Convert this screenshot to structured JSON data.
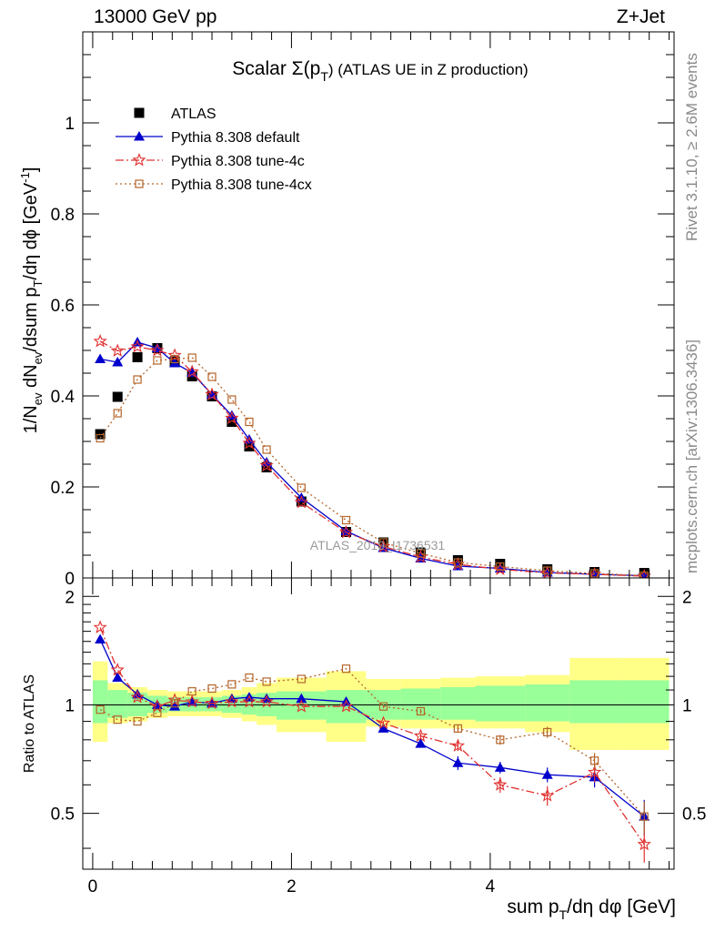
{
  "header": {
    "left": "13000 GeV pp",
    "right": "Z+Jet"
  },
  "side_labels": {
    "rivet": "Rivet 3.1.10, ≥ 2.6M events",
    "mcplots": "mcplots.cern.ch [arXiv:1306.3436]"
  },
  "watermark": "ATLAS_2019_I1736531",
  "chart_data": [
    {
      "type": "scatter",
      "title": "Scalar Σ(pT) (ATLAS UE in Z production)",
      "title_main": "Scalar Σ(p",
      "title_sub": "T",
      "title_tail": ") (ATLAS UE in Z production)",
      "ylabel": "1/Nev dNev/dsum pT/dη dφ [GeV⁻¹]",
      "xlim": [
        -0.1,
        5.85
      ],
      "ylim": [
        0,
        1.2
      ],
      "log_y": false,
      "yticks": [
        {
          "v": 0,
          "label": "0"
        },
        {
          "v": 0.2,
          "label": "0.2"
        },
        {
          "v": 0.4,
          "label": "0.4"
        },
        {
          "v": 0.6,
          "label": "0.6"
        },
        {
          "v": 0.8,
          "label": "0.8"
        },
        {
          "v": 1,
          "label": "1"
        }
      ],
      "legend_position": "top-left",
      "x": [
        0.075,
        0.25,
        0.45,
        0.65,
        0.825,
        1.0,
        1.2,
        1.4,
        1.575,
        1.75,
        2.1,
        2.55,
        2.925,
        3.3,
        3.675,
        4.1,
        4.575,
        5.05,
        5.55
      ],
      "series": [
        {
          "name": "ATLAS",
          "marker": "filled-square",
          "color": "#000000",
          "values": [
            0.316,
            0.398,
            0.485,
            0.505,
            0.476,
            0.443,
            0.399,
            0.343,
            0.289,
            0.243,
            0.168,
            0.101,
            0.078,
            0.056,
            0.039,
            0.031,
            0.019,
            0.013,
            0.011
          ]
        },
        {
          "name": "Pythia 8.308 default",
          "marker": "triangle",
          "color": "#0000cc",
          "dash": "",
          "values": [
            0.481,
            0.474,
            0.518,
            0.505,
            0.472,
            0.451,
            0.403,
            0.357,
            0.304,
            0.254,
            0.176,
            0.103,
            0.066,
            0.043,
            0.026,
            0.021,
            0.012,
            0.008,
            0.005
          ]
        },
        {
          "name": "Pythia 8.308 tune-4c",
          "marker": "star",
          "color": "#e03030",
          "dash": "9,3,2,3",
          "values": [
            0.52,
            0.499,
            0.508,
            0.5,
            0.489,
            0.453,
            0.403,
            0.351,
            0.296,
            0.247,
            0.166,
            0.1,
            0.069,
            0.046,
            0.03,
            0.019,
            0.011,
            0.008,
            0.004
          ]
        },
        {
          "name": "Pythia 8.308 tune-4cx",
          "marker": "open-square",
          "color": "#b5652a",
          "dash": "2,3",
          "values": [
            0.307,
            0.362,
            0.436,
            0.478,
            0.481,
            0.484,
            0.442,
            0.392,
            0.343,
            0.282,
            0.198,
            0.127,
            0.078,
            0.054,
            0.034,
            0.025,
            0.016,
            0.01,
            0.005
          ]
        }
      ]
    },
    {
      "type": "scatter",
      "title": "",
      "xlabel": "sum pT/dη dφ [GeV]",
      "xlabel_main": "sum p",
      "xlabel_sub": "T",
      "xlabel_tail": "/dη dφ [GeV]",
      "ylabel": "Ratio to ATLAS",
      "xlim": [
        -0.1,
        5.85
      ],
      "ylim": [
        0.35,
        2.25
      ],
      "log_y": true,
      "xticks": [
        {
          "v": 0,
          "label": "0"
        },
        {
          "v": 2,
          "label": "2"
        },
        {
          "v": 4,
          "label": "4"
        }
      ],
      "yticks": [
        {
          "v": 0.5,
          "label": "0.5"
        },
        {
          "v": 1,
          "label": "1"
        },
        {
          "v": 2,
          "label": "2"
        }
      ],
      "reference_line": 1,
      "x_edges": [
        0.0,
        0.15,
        0.35,
        0.55,
        0.75,
        0.9,
        1.1,
        1.3,
        1.5,
        1.65,
        1.85,
        2.35,
        2.75,
        3.1,
        3.5,
        3.85,
        4.35,
        4.8,
        5.3,
        5.8
      ],
      "band_inner": [
        [
          0.89,
          1.17
        ],
        [
          0.92,
          1.1
        ],
        [
          0.93,
          1.08
        ],
        [
          0.95,
          1.06
        ],
        [
          0.96,
          1.05
        ],
        [
          0.96,
          1.05
        ],
        [
          0.96,
          1.05
        ],
        [
          0.95,
          1.06
        ],
        [
          0.94,
          1.07
        ],
        [
          0.93,
          1.08
        ],
        [
          0.91,
          1.09
        ],
        [
          0.89,
          1.1
        ],
        [
          0.91,
          1.1
        ],
        [
          0.91,
          1.11
        ],
        [
          0.91,
          1.12
        ],
        [
          0.9,
          1.13
        ],
        [
          0.9,
          1.14
        ],
        [
          0.89,
          1.17
        ],
        [
          0.89,
          1.17
        ]
      ],
      "band_outer": [
        [
          0.79,
          1.32
        ],
        [
          0.89,
          1.15
        ],
        [
          0.9,
          1.12
        ],
        [
          0.92,
          1.1
        ],
        [
          0.93,
          1.09
        ],
        [
          0.93,
          1.09
        ],
        [
          0.93,
          1.09
        ],
        [
          0.92,
          1.1
        ],
        [
          0.9,
          1.12
        ],
        [
          0.88,
          1.15
        ],
        [
          0.84,
          1.19
        ],
        [
          0.79,
          1.24
        ],
        [
          0.87,
          1.18
        ],
        [
          0.86,
          1.18
        ],
        [
          0.86,
          1.19
        ],
        [
          0.86,
          1.2
        ],
        [
          0.84,
          1.21
        ],
        [
          0.75,
          1.35
        ],
        [
          0.75,
          1.35
        ]
      ],
      "x": [
        0.075,
        0.25,
        0.45,
        0.65,
        0.825,
        1.0,
        1.2,
        1.4,
        1.575,
        1.75,
        2.1,
        2.55,
        2.925,
        3.3,
        3.675,
        4.1,
        4.575,
        5.05,
        5.55
      ],
      "series": [
        {
          "name": "Pythia 8.308 default",
          "color": "#0000cc",
          "values": [
            1.52,
            1.19,
            1.07,
            1.0,
            0.99,
            1.02,
            1.01,
            1.04,
            1.05,
            1.04,
            1.04,
            1.02,
            0.86,
            0.78,
            0.69,
            0.67,
            0.64,
            0.63,
            0.49
          ],
          "errors": [
            0,
            0,
            0,
            0,
            0,
            0,
            0,
            0,
            0,
            0,
            0,
            0,
            0.012,
            0.015,
            0.03,
            0.025,
            0.03,
            0.04,
            0.055
          ]
        },
        {
          "name": "Pythia 8.308 tune-4c",
          "color": "#e03030",
          "values": [
            1.64,
            1.25,
            1.05,
            0.99,
            1.03,
            1.02,
            1.01,
            1.02,
            1.02,
            1.02,
            0.99,
            0.99,
            0.89,
            0.82,
            0.77,
            0.6,
            0.56,
            0.65,
            0.41
          ],
          "errors": [
            0,
            0,
            0,
            0,
            0,
            0,
            0,
            0,
            0,
            0,
            0,
            0,
            0.012,
            0.015,
            0.025,
            0.03,
            0.035,
            0.04,
            0.045
          ]
        },
        {
          "name": "Pythia 8.308 tune-4cx",
          "color": "#b5652a",
          "values": [
            0.97,
            0.91,
            0.9,
            0.95,
            1.01,
            1.09,
            1.11,
            1.14,
            1.19,
            1.16,
            1.18,
            1.26,
            0.99,
            0.96,
            0.86,
            0.8,
            0.84,
            0.7,
            0.49
          ],
          "errors": [
            0,
            0,
            0,
            0,
            0,
            0,
            0,
            0,
            0,
            0,
            0,
            0,
            0.012,
            0.015,
            0.02,
            0.025,
            0.03,
            0.035,
            0.05
          ]
        }
      ]
    }
  ]
}
